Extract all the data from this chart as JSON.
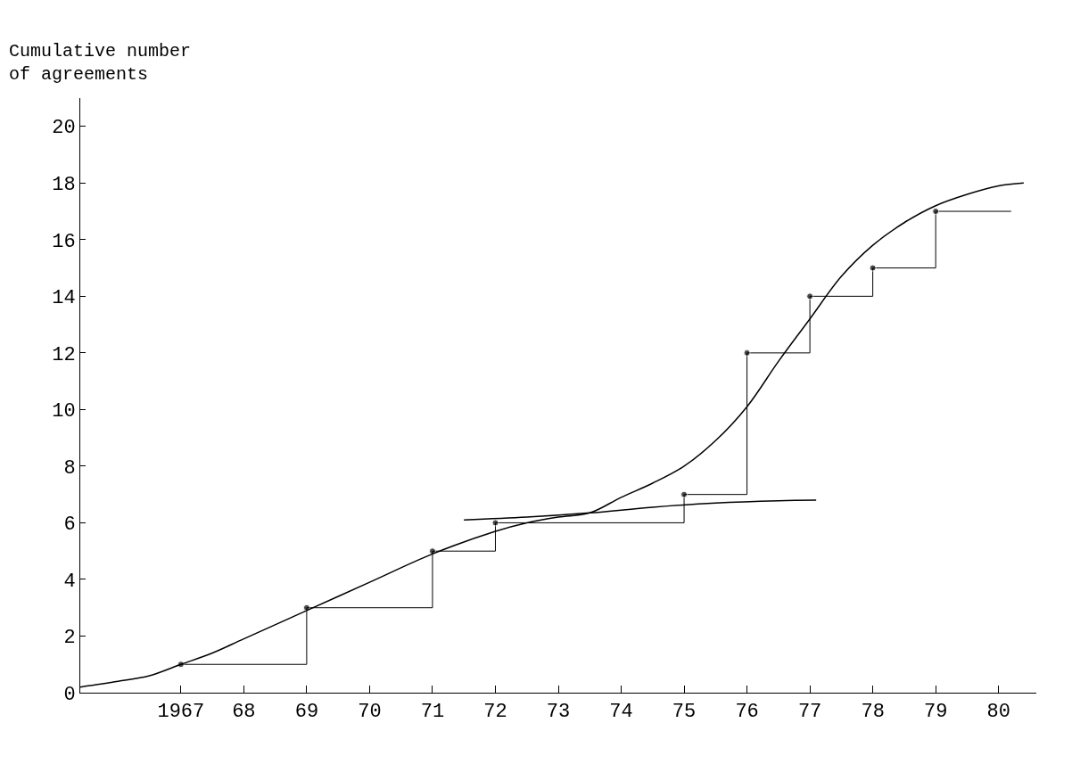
{
  "chart_data": {
    "type": "step",
    "ylabel": "Cumulative number\nof agreements",
    "series": [
      {
        "color": "#000000",
        "marker": "circle",
        "x": [
          1967,
          1969,
          1971,
          1972,
          1975,
          1976,
          1977,
          1978,
          1979,
          1980.2
        ],
        "values": [
          1,
          3,
          5,
          6,
          7,
          12,
          14,
          15,
          17,
          17
        ]
      },
      {
        "type": "line",
        "color": "#000000",
        "marker": "none",
        "x": [
          1965.4,
          1966,
          1966.5,
          1967,
          1967.5,
          1968,
          1969,
          1970,
          1971,
          1972,
          1972.5,
          1973,
          1973.5,
          1974,
          1974.5,
          1975,
          1975.5,
          1976,
          1976.5,
          1977,
          1977.5,
          1978,
          1978.5,
          1979,
          1979.5,
          1980,
          1980.4
        ],
        "values": [
          0.2,
          0.4,
          0.6,
          1.0,
          1.4,
          1.9,
          2.9,
          3.9,
          4.9,
          5.7,
          6.0,
          6.2,
          6.35,
          6.9,
          7.4,
          8.0,
          8.9,
          10.1,
          11.7,
          13.2,
          14.7,
          15.8,
          16.6,
          17.2,
          17.6,
          17.9,
          18.0
        ]
      },
      {
        "type": "line",
        "color": "#000000",
        "marker": "none",
        "x": [
          1971.5,
          1972.5,
          1973.5,
          1974.5,
          1975.5,
          1976.5,
          1977.1
        ],
        "values": [
          6.1,
          6.2,
          6.35,
          6.55,
          6.7,
          6.78,
          6.8
        ]
      }
    ],
    "xlim": [
      1965.4,
      1980.6
    ],
    "xticks": [
      {
        "value": 1967,
        "label": "1967"
      },
      {
        "value": 1968,
        "label": "68"
      },
      {
        "value": 1969,
        "label": "69"
      },
      {
        "value": 1970,
        "label": "70"
      },
      {
        "value": 1971,
        "label": "71"
      },
      {
        "value": 1972,
        "label": "72"
      },
      {
        "value": 1973,
        "label": "73"
      },
      {
        "value": 1974,
        "label": "74"
      },
      {
        "value": 1975,
        "label": "75"
      },
      {
        "value": 1976,
        "label": "76"
      },
      {
        "value": 1977,
        "label": "77"
      },
      {
        "value": 1978,
        "label": "78"
      },
      {
        "value": 1979,
        "label": "79"
      },
      {
        "value": 1980,
        "label": "80"
      }
    ],
    "ylim": [
      0,
      21
    ],
    "yticks": [
      0,
      2,
      4,
      6,
      8,
      10,
      12,
      14,
      16,
      18,
      20
    ]
  }
}
